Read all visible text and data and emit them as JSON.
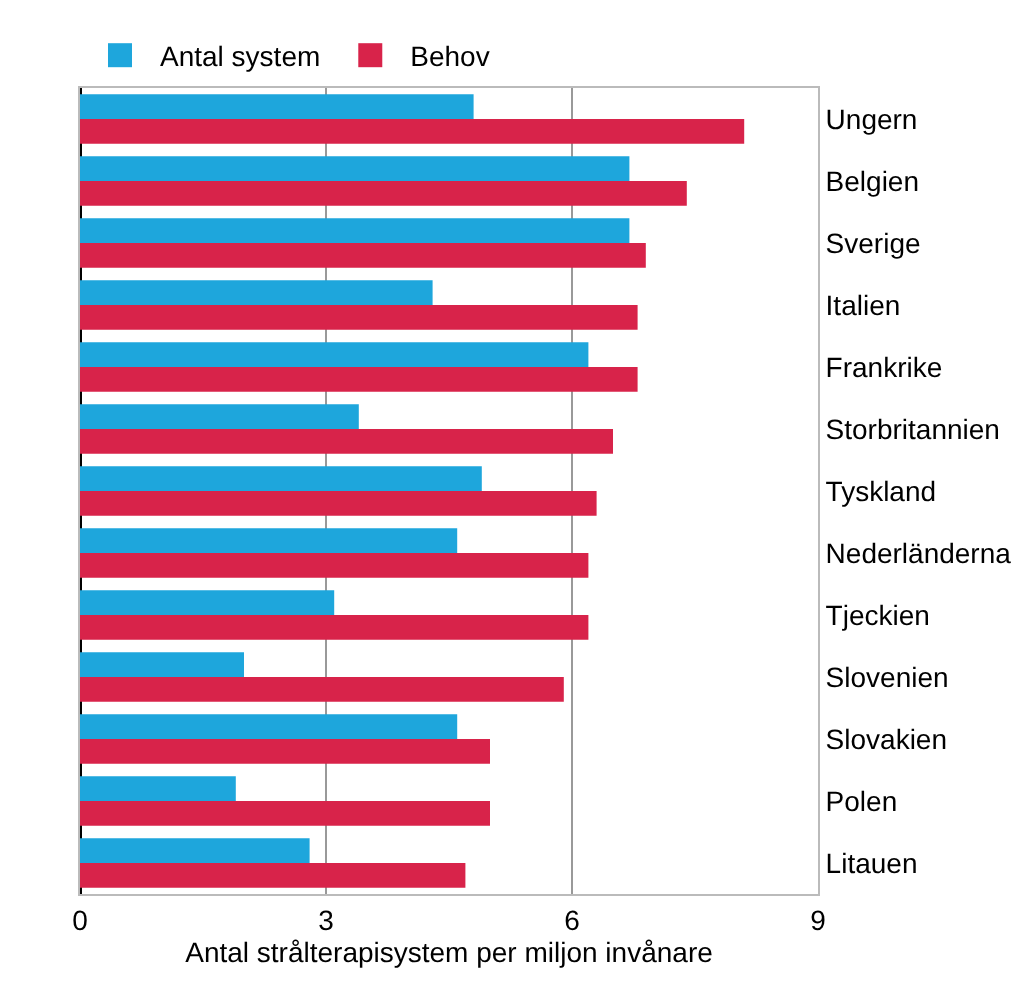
{
  "chart_data": {
    "type": "bar",
    "orientation": "horizontal",
    "xlabel": "Antal strålterapisystem per miljon invånare",
    "categories": [
      "Ungern",
      "Belgien",
      "Sverige",
      "Italien",
      "Frankrike",
      "Storbritannien",
      "Tyskland",
      "Nederländerna",
      "Tjeckien",
      "Slovenien",
      "Slovakien",
      "Polen",
      "Litauen"
    ],
    "series": [
      {
        "name": "Antal system",
        "color": "#1ea6dc",
        "values": [
          4.8,
          6.7,
          6.7,
          4.3,
          6.2,
          3.4,
          4.9,
          4.6,
          3.1,
          2.0,
          4.6,
          1.9,
          2.8
        ]
      },
      {
        "name": "Behov",
        "color": "#d8234a",
        "values": [
          8.1,
          7.4,
          6.9,
          6.8,
          6.8,
          6.5,
          6.3,
          6.2,
          6.2,
          5.9,
          5.0,
          5.0,
          4.7
        ]
      }
    ],
    "xlim": [
      0,
      9
    ],
    "xticks": [
      0,
      3,
      6,
      9
    ],
    "grid": "x",
    "legend": "top left"
  }
}
